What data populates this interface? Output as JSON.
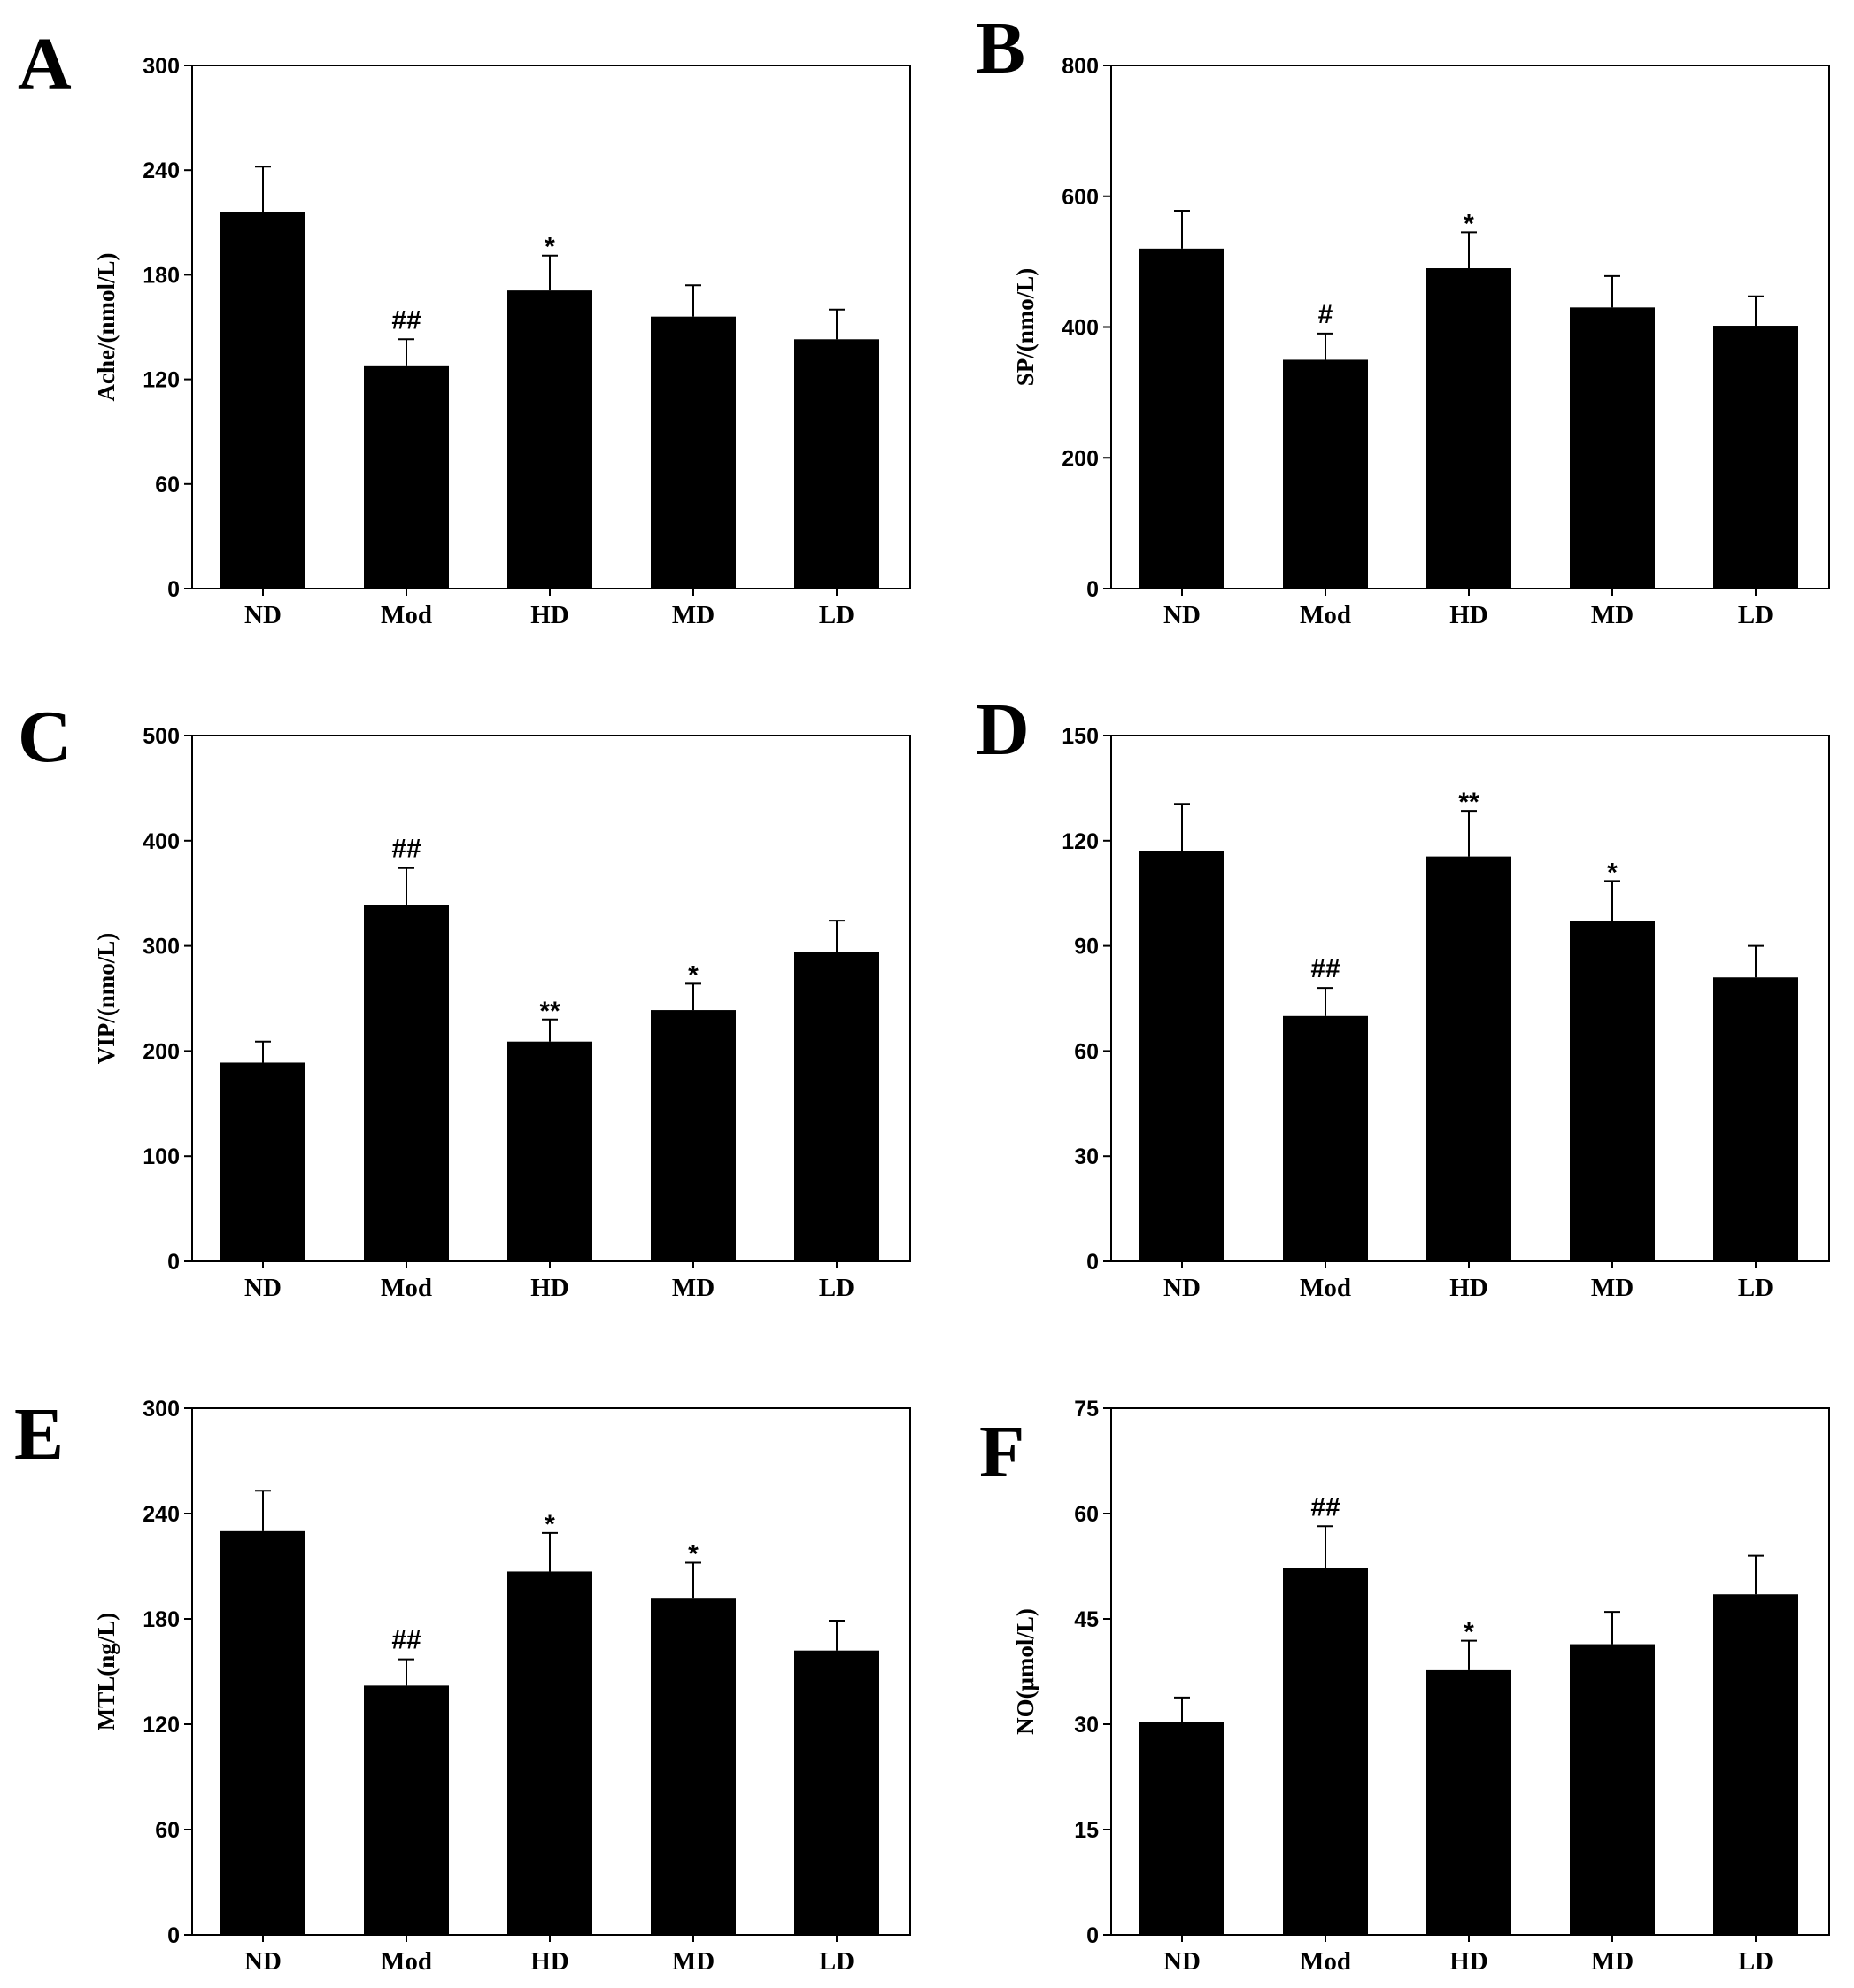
{
  "colors": {
    "bar": "#000000",
    "axis": "#000000",
    "background": "#ffffff"
  },
  "chart_data": [
    {
      "panel": "A",
      "type": "bar",
      "categories": [
        "ND",
        "Mod",
        "HD",
        "MD",
        "LD"
      ],
      "values": [
        216,
        128,
        171,
        156,
        143
      ],
      "errors": [
        26,
        15,
        20,
        18,
        17
      ],
      "annotations": [
        "",
        "##",
        "*",
        "",
        ""
      ],
      "ylabel": "Ache/(nmol/L)",
      "ylim": [
        0,
        300
      ],
      "yticks": [
        0,
        60,
        120,
        180,
        240,
        300
      ],
      "ytick_labels": [
        "0",
        "60",
        "120",
        "180",
        "240",
        "300"
      ]
    },
    {
      "panel": "B",
      "type": "bar",
      "categories": [
        "ND",
        "Mod",
        "HD",
        "MD",
        "LD"
      ],
      "values": [
        520,
        350,
        490,
        430,
        402
      ],
      "errors": [
        58,
        40,
        55,
        48,
        45
      ],
      "annotations": [
        "",
        "#",
        "*",
        "",
        ""
      ],
      "ylabel": "SP/(nmo/L)",
      "ylim": [
        0,
        800
      ],
      "yticks": [
        0,
        200,
        400,
        600,
        800
      ],
      "ytick_labels": [
        "0",
        "200",
        "400",
        "600",
        "800"
      ]
    },
    {
      "panel": "C",
      "type": "bar",
      "categories": [
        "ND",
        "Mod",
        "HD",
        "MD",
        "LD"
      ],
      "values": [
        189,
        339,
        209,
        239,
        294
      ],
      "errors": [
        20,
        35,
        21,
        25,
        30
      ],
      "annotations": [
        "",
        "##",
        "**",
        "*",
        ""
      ],
      "ylabel": "VIP/(nmo/L)",
      "ylim": [
        0,
        500
      ],
      "yticks": [
        0,
        100,
        200,
        300,
        400,
        500
      ],
      "ytick_labels": [
        "0",
        "100",
        "200",
        "300",
        "400",
        "500"
      ]
    },
    {
      "panel": "D",
      "type": "bar",
      "categories": [
        "ND",
        "Mod",
        "HD",
        "MD",
        "LD"
      ],
      "values": [
        117,
        70,
        115.5,
        97,
        81
      ],
      "errors": [
        13.5,
        8,
        13,
        11.5,
        9
      ],
      "annotations": [
        "",
        "##",
        "**",
        "*",
        ""
      ],
      "ylabel": "",
      "ylim": [
        0,
        150
      ],
      "yticks": [
        0,
        30,
        60,
        90,
        120,
        150
      ],
      "ytick_labels": [
        "0",
        "30",
        "60",
        "90",
        "120",
        "150"
      ]
    },
    {
      "panel": "E",
      "type": "bar",
      "categories": [
        "ND",
        "Mod",
        "HD",
        "MD",
        "LD"
      ],
      "values": [
        230,
        142,
        207,
        192,
        162
      ],
      "errors": [
        23,
        15,
        22,
        20,
        17
      ],
      "annotations": [
        "",
        "##",
        "*",
        "*",
        ""
      ],
      "ylabel": "MTL(ng/L)",
      "ylim": [
        0,
        300
      ],
      "yticks": [
        0,
        60,
        120,
        180,
        240,
        300
      ],
      "ytick_labels": [
        "0",
        "60",
        "120",
        "180",
        "240",
        "300"
      ]
    },
    {
      "panel": "F",
      "type": "bar",
      "categories": [
        "ND",
        "Mod",
        "HD",
        "MD",
        "LD"
      ],
      "values": [
        30.3,
        52.2,
        37.7,
        41.4,
        48.5
      ],
      "errors": [
        3.5,
        6,
        4.2,
        4.6,
        5.5
      ],
      "annotations": [
        "",
        "##",
        "*",
        "",
        ""
      ],
      "ylabel": "NO(μmol/L)",
      "ylim": [
        0,
        75
      ],
      "yticks": [
        0,
        15,
        30,
        45,
        60,
        75
      ],
      "ytick_labels": [
        "0",
        "15",
        "30",
        "45",
        "60",
        "75"
      ]
    }
  ]
}
